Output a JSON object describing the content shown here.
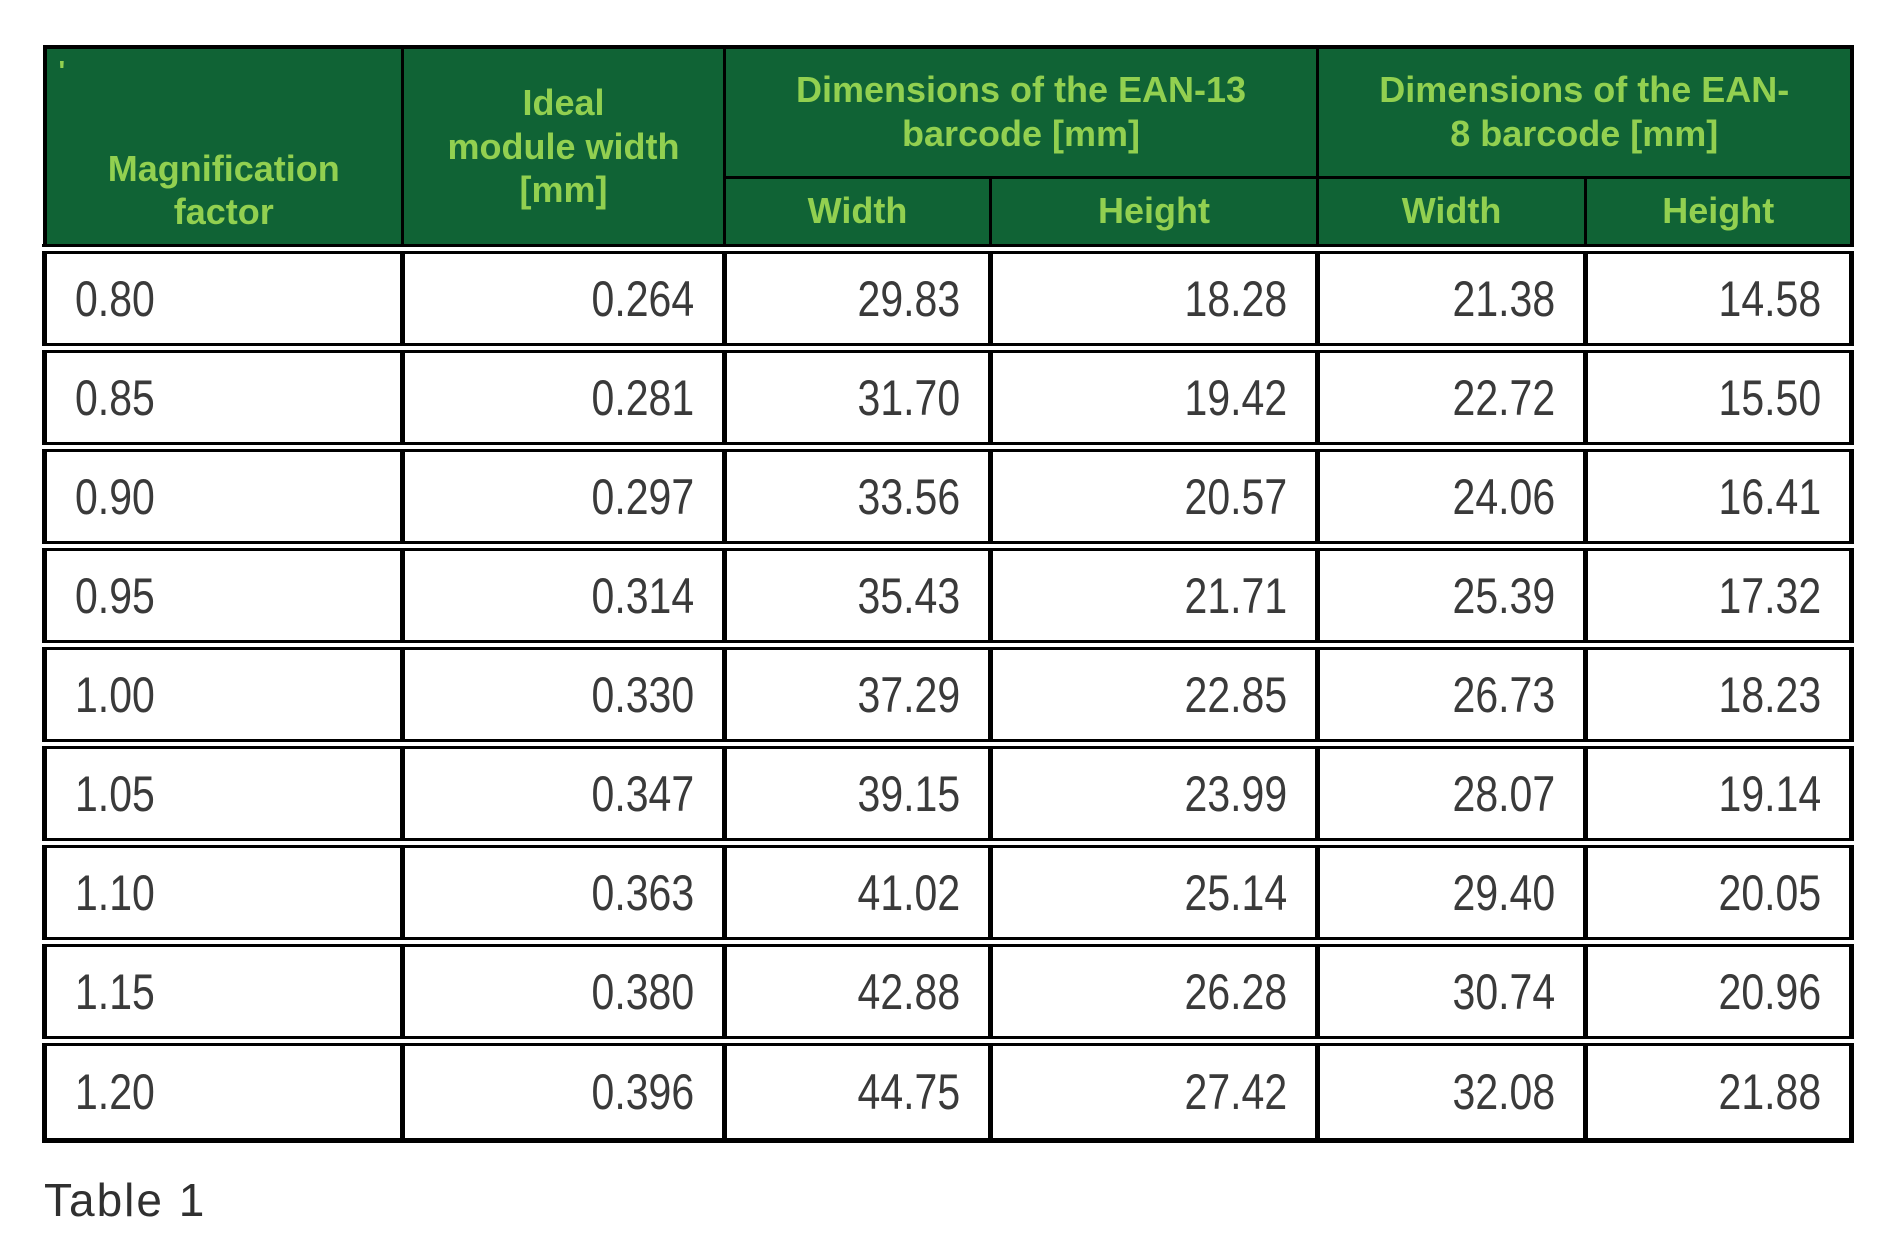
{
  "page": {
    "caption": "Table 1",
    "stray_mark": "'"
  },
  "colors": {
    "header_bg": "#106335",
    "header_text": "#92d050",
    "grid": "#000000",
    "ink": "#3a3a3a"
  },
  "table": {
    "columns": {
      "magnification": "Magnification\nfactor",
      "ideal_module_width": "Ideal\nmodule width\n[mm]",
      "ean13_group": "Dimensions of the EAN-13\nbarcode [mm]",
      "ean8_group": "Dimensions of the EAN-\n8 barcode [mm]",
      "ean13_width": "Width",
      "ean13_height": "Height",
      "ean8_width": "Width",
      "ean8_height": "Height"
    },
    "rows": [
      [
        "0.80",
        "0.264",
        "29.83",
        "18.28",
        "21.38",
        "14.58"
      ],
      [
        "0.85",
        "0.281",
        "31.70",
        "19.42",
        "22.72",
        "15.50"
      ],
      [
        "0.90",
        "0.297",
        "33.56",
        "20.57",
        "24.06",
        "16.41"
      ],
      [
        "0.95",
        "0.314",
        "35.43",
        "21.71",
        "25.39",
        "17.32"
      ],
      [
        "1.00",
        "0.330",
        "37.29",
        "22.85",
        "26.73",
        "18.23"
      ],
      [
        "1.05",
        "0.347",
        "39.15",
        "23.99",
        "28.07",
        "19.14"
      ],
      [
        "1.10",
        "0.363",
        "41.02",
        "25.14",
        "29.40",
        "20.05"
      ],
      [
        "1.15",
        "0.380",
        "42.88",
        "26.28",
        "30.74",
        "20.96"
      ],
      [
        "1.20",
        "0.396",
        "44.75",
        "27.42",
        "32.08",
        "21.88"
      ]
    ]
  }
}
